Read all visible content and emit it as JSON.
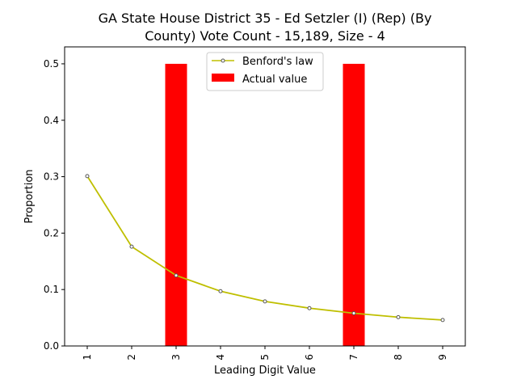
{
  "chart_data": {
    "type": "bar",
    "title_lines": [
      "GA State House District 35 - Ed Setzler (I) (Rep) (By",
      "County) Vote Count - 15,189, Size - 4"
    ],
    "xlabel": "Leading Digit Value",
    "ylabel": "Proportion",
    "categories": [
      "1",
      "2",
      "3",
      "4",
      "5",
      "6",
      "7",
      "8",
      "9"
    ],
    "ylim": [
      0,
      0.53
    ],
    "yticks": [
      0.0,
      0.1,
      0.2,
      0.3,
      0.4,
      0.5
    ],
    "ytick_labels": [
      "0.0",
      "0.1",
      "0.2",
      "0.3",
      "0.4",
      "0.5"
    ],
    "legend_position": "top-center",
    "grid": false,
    "series": [
      {
        "name": "Benford's law",
        "kind": "line",
        "color": "#bfbf00",
        "values": [
          0.301,
          0.176,
          0.125,
          0.097,
          0.079,
          0.067,
          0.058,
          0.051,
          0.046
        ]
      },
      {
        "name": "Actual value",
        "kind": "bar",
        "color": "#ff0000",
        "values": [
          0,
          0,
          0.5,
          0,
          0,
          0,
          0.5,
          0,
          0
        ]
      }
    ]
  }
}
